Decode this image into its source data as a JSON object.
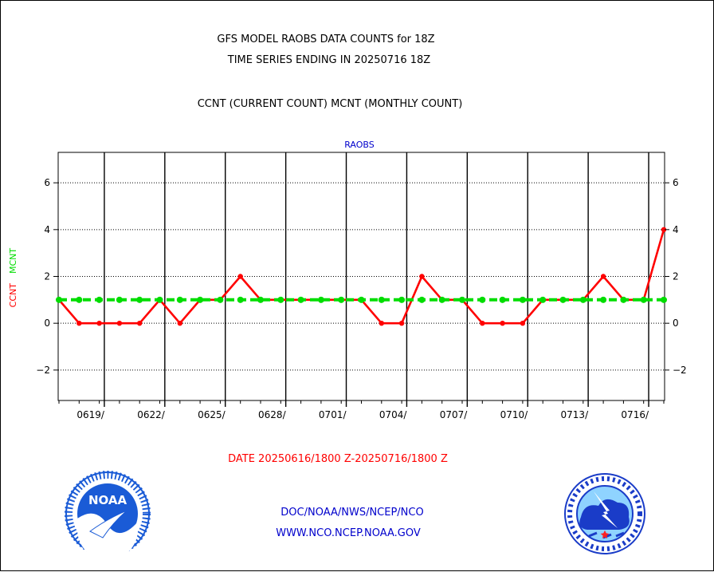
{
  "chart_data": {
    "type": "line",
    "title": "GFS MODEL RAOBS DATA COUNTS for 18Z",
    "subtitle": "TIME SERIES ENDING IN 20250716 18Z",
    "legend_text": "CCNT (CURRENT COUNT) MCNT (MONTHLY COUNT)",
    "panel_label": "RAOBS",
    "ylabel_ccnt": "CCNT",
    "ylabel_mcnt": "MCNT",
    "xlabel": "DATE 20250616/1800 Z-20250716/1800 Z",
    "ylim": [
      -3.3,
      7.3
    ],
    "y_ticks": [
      {
        "value": -2,
        "label": "−2"
      },
      {
        "value": 0,
        "label": "0"
      },
      {
        "value": 2,
        "label": "2"
      },
      {
        "value": 4,
        "label": "4"
      },
      {
        "value": 6,
        "label": "6"
      }
    ],
    "x_range": [
      "20250616",
      "20250716"
    ],
    "x_ticks": [
      "0619/",
      "0622/",
      "0625/",
      "0628/",
      "0701/",
      "0704/",
      "0707/",
      "0710/",
      "0713/",
      "0716/"
    ],
    "x": [
      "20250616",
      "20250617",
      "20250618",
      "20250619",
      "20250620",
      "20250621",
      "20250622",
      "20250623",
      "20250624",
      "20250625",
      "20250626",
      "20250627",
      "20250628",
      "20250629",
      "20250630",
      "20250701",
      "20250702",
      "20250703",
      "20250704",
      "20250705",
      "20250706",
      "20250707",
      "20250708",
      "20250709",
      "20250710",
      "20250711",
      "20250712",
      "20250713",
      "20250714",
      "20250715",
      "20250716"
    ],
    "series": [
      {
        "name": "CCNT",
        "color": "#ff0000",
        "style": "solid",
        "values": [
          1,
          0,
          0,
          0,
          0,
          1,
          0,
          1,
          1,
          2,
          1,
          1,
          1,
          1,
          1,
          1,
          0,
          0,
          2,
          1,
          1,
          0,
          0,
          0,
          1,
          1,
          1,
          2,
          1,
          1,
          4
        ]
      },
      {
        "name": "MCNT",
        "color": "#00dd00",
        "style": "dashed",
        "values": [
          1,
          1,
          1,
          1,
          1,
          1,
          1,
          1,
          1,
          1,
          1,
          1,
          1,
          1,
          1,
          1,
          1,
          1,
          1,
          1,
          1,
          1,
          1,
          1,
          1,
          1,
          1,
          1,
          1,
          1,
          1
        ]
      }
    ],
    "grid": true,
    "y_grid_style": "dotted"
  },
  "footer": {
    "agency": "DOC/NOAA/NWS/NCEP/NCO",
    "website": "WWW.NCO.NCEP.NOAA.GOV"
  },
  "logos": {
    "left": {
      "icon": "noaa-logo-icon",
      "text": "NOAA"
    },
    "right": {
      "icon": "nws-logo-icon"
    }
  },
  "colors": {
    "title": "#000000",
    "panel_label": "#0000cc",
    "ccnt": "#ff0000",
    "mcnt": "#00dd00",
    "date_label": "#ff0000",
    "footer": "#0000cc",
    "noaa_blue": "#1a5bd6",
    "nws_blue": "#1a3cc8"
  }
}
